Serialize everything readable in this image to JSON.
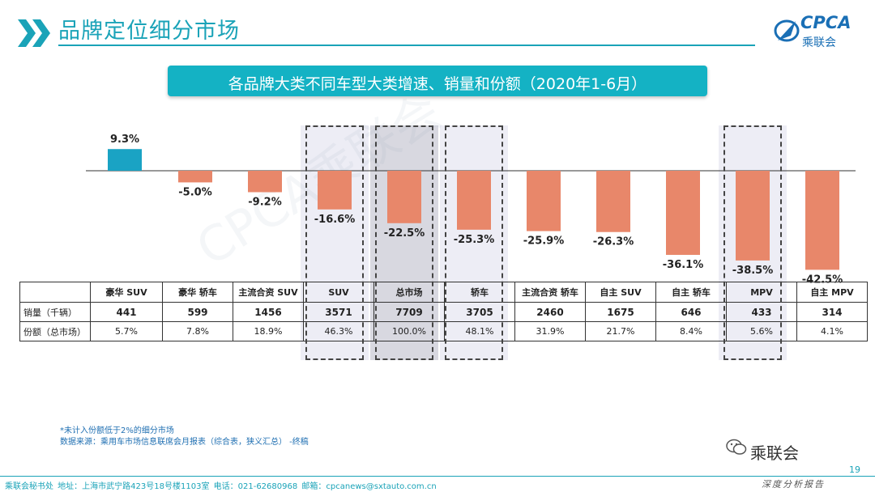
{
  "page_title": "品牌定位细分市场",
  "logo": {
    "brand": "CPCA",
    "org": "乘联会",
    "small": "CPCA"
  },
  "chart_data": {
    "type": "bar",
    "title": "各品牌大类不同车型大类增速、销量和份额（2020年1-6月）",
    "categories": [
      "豪华 SUV",
      "豪华 轿车",
      "主流合资 SUV",
      "SUV",
      "总市场",
      "轿车",
      "主流合资 轿车",
      "自主 SUV",
      "自主 轿车",
      "MPV",
      "自主 MPV"
    ],
    "values": [
      9.3,
      -5.0,
      -9.2,
      -16.6,
      -22.5,
      -25.3,
      -25.9,
      -26.3,
      -36.1,
      -38.5,
      -42.5
    ],
    "labels": [
      "9.3%",
      "-5.0%",
      "-9.2%",
      "-16.6%",
      "-22.5%",
      "-25.3%",
      "-25.9%",
      "-26.3%",
      "-36.1%",
      "-38.5%",
      "-42.5%"
    ],
    "unit": "%",
    "highlighted": [
      "SUV",
      "总市场",
      "轿车",
      "MPV"
    ],
    "colors": {
      "positive": "#1aa3c4",
      "negative": "#e8876a",
      "total_shade": "#d8d8e0",
      "highlight_shade": "#ededf5"
    }
  },
  "table": {
    "rows": [
      {
        "label": "销量（千辆）",
        "values": [
          "441",
          "599",
          "1456",
          "3571",
          "7709",
          "3705",
          "2460",
          "1675",
          "646",
          "433",
          "314"
        ]
      },
      {
        "label": "份额（总市场）",
        "values": [
          "5.7%",
          "7.8%",
          "18.9%",
          "46.3%",
          "100.0%",
          "48.1%",
          "31.9%",
          "21.7%",
          "8.4%",
          "5.6%",
          "4.1%"
        ]
      }
    ]
  },
  "footnotes": {
    "line1": "*未计入份额低于2%的细分市场",
    "line2": "数据来源：乘用车市场信息联席会月报表（综合表，狭义汇总）   -终稿"
  },
  "wechat": "乘联会",
  "page_number": "19",
  "footer": {
    "left": "乘联会秘书处    地址：上海市武宁路423号18号楼1103室    电话：021-62680968    邮箱：cpcanews@sxtauto.com.cn",
    "right": "深度分析报告"
  },
  "watermark": "CPCA乘联会"
}
